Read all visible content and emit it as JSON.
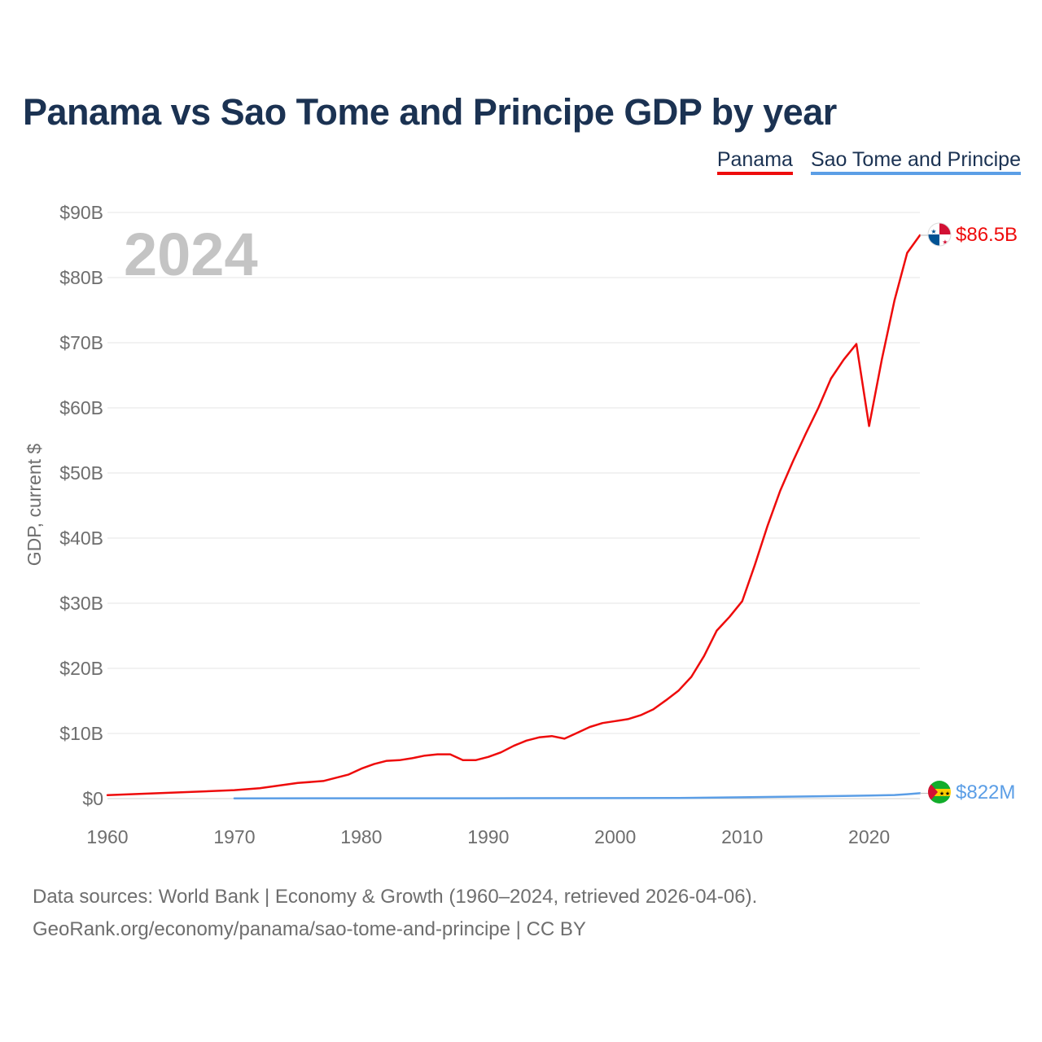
{
  "title": "Panama vs Sao Tome and Principe GDP by year",
  "year_watermark": "2024",
  "legend": [
    {
      "label": "Panama",
      "color": "#ee0b0b"
    },
    {
      "label": "Sao Tome and Principe",
      "color": "#5b9ee6"
    }
  ],
  "sources": {
    "line1": "Data sources: World Bank | Economy & Growth (1960–2024, retrieved 2026-04-06).",
    "line2": "GeoRank.org/economy/panama/sao-tome-and-principe | CC BY"
  },
  "chart_data": {
    "type": "line",
    "title": "Panama vs Sao Tome and Principe GDP by year",
    "xlabel": "",
    "ylabel": "GDP, current $",
    "xlim": [
      1960,
      2024
    ],
    "ylim": [
      0,
      90
    ],
    "y_unit": "billion USD",
    "x_ticks": [
      1960,
      1970,
      1980,
      1990,
      2000,
      2010,
      2020
    ],
    "y_ticks": [
      {
        "value": 0,
        "label": "$0"
      },
      {
        "value": 10,
        "label": "$10B"
      },
      {
        "value": 20,
        "label": "$20B"
      },
      {
        "value": 30,
        "label": "$30B"
      },
      {
        "value": 40,
        "label": "$40B"
      },
      {
        "value": 50,
        "label": "$50B"
      },
      {
        "value": 60,
        "label": "$60B"
      },
      {
        "value": 70,
        "label": "$70B"
      },
      {
        "value": 80,
        "label": "$80B"
      },
      {
        "value": 90,
        "label": "$90B"
      }
    ],
    "grid": true,
    "legend_position": "top-right",
    "series": [
      {
        "name": "Panama",
        "color": "#ee0b0b",
        "end_label": "$86.5B",
        "x": [
          1960,
          1965,
          1970,
          1972,
          1975,
          1977,
          1979,
          1980,
          1981,
          1982,
          1983,
          1984,
          1985,
          1986,
          1987,
          1988,
          1989,
          1990,
          1991,
          1992,
          1993,
          1994,
          1995,
          1996,
          1997,
          1998,
          1999,
          2000,
          2001,
          2002,
          2003,
          2004,
          2005,
          2006,
          2007,
          2008,
          2009,
          2010,
          2011,
          2012,
          2013,
          2014,
          2015,
          2016,
          2017,
          2018,
          2019,
          2020,
          2021,
          2022,
          2023,
          2024
        ],
        "values": [
          0.54,
          0.9,
          1.3,
          1.6,
          2.4,
          2.7,
          3.7,
          4.6,
          5.3,
          5.8,
          5.9,
          6.2,
          6.6,
          6.8,
          6.8,
          5.9,
          5.9,
          6.4,
          7.1,
          8.1,
          8.9,
          9.4,
          9.6,
          9.2,
          10.1,
          11.0,
          11.6,
          11.9,
          12.2,
          12.8,
          13.7,
          15.1,
          16.6,
          18.7,
          21.9,
          25.8,
          27.9,
          30.3,
          35.9,
          41.9,
          47.3,
          51.8,
          56.0,
          60.0,
          64.5,
          67.4,
          69.8,
          57.2,
          67.4,
          76.5,
          83.8,
          86.5
        ]
      },
      {
        "name": "Sao Tome and Principe",
        "color": "#5b9ee6",
        "end_label": "$822M",
        "x": [
          1970,
          1980,
          1990,
          2000,
          2005,
          2010,
          2015,
          2018,
          2020,
          2022,
          2023,
          2024
        ],
        "values": [
          0.02,
          0.05,
          0.05,
          0.08,
          0.1,
          0.2,
          0.32,
          0.41,
          0.47,
          0.55,
          0.68,
          0.822
        ]
      }
    ]
  }
}
